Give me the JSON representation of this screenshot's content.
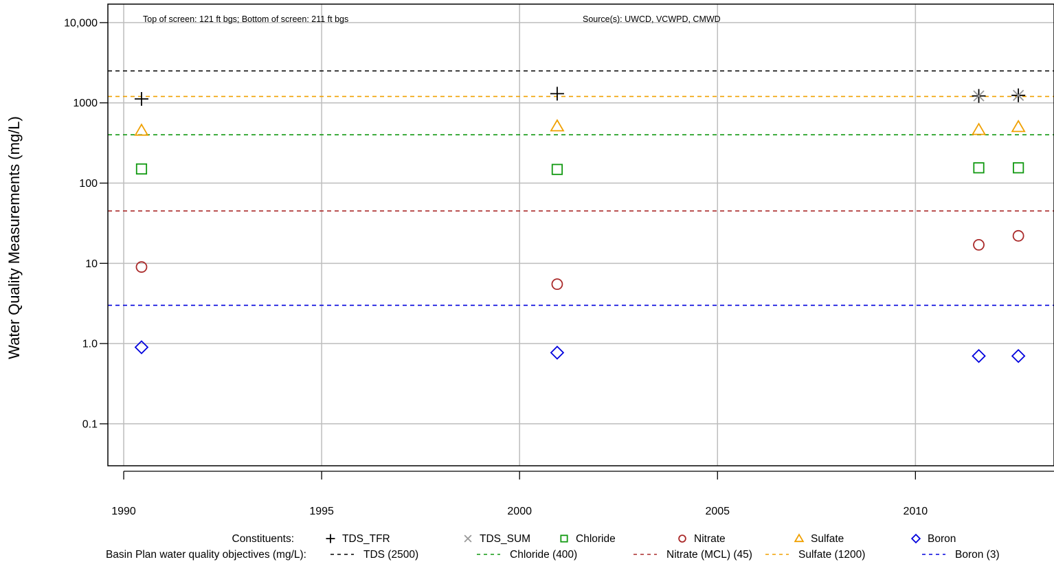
{
  "chart_data": {
    "type": "scatter",
    "ylabel": "Water Quality Measurements (mg/L)",
    "y_scale": "log",
    "ylim": [
      0.03,
      17000
    ],
    "xlim": [
      1989.6,
      2013.5
    ],
    "x_ticks": [
      1990,
      1995,
      2000,
      2005,
      2010
    ],
    "x_tick_labels": [
      "1990",
      "1995",
      "2000",
      "2005",
      "2010"
    ],
    "y_ticks": [
      0.1,
      1,
      10,
      100,
      1000,
      10000
    ],
    "y_tick_labels": [
      "0.1",
      "1.0",
      "10",
      "100",
      "1000",
      "10,000"
    ],
    "grid": true,
    "annotations": {
      "screen": "Top of screen: 121 ft bgs; Bottom of screen: 211 ft bgs",
      "source": "Source(s): UWCD, VCWPD, CMWD"
    },
    "series": [
      {
        "name": "TDS_TFR",
        "marker": "plus",
        "color": "#000000",
        "points": [
          [
            1990.45,
            1120
          ],
          [
            2000.95,
            1300
          ],
          [
            2011.6,
            1220
          ],
          [
            2012.6,
            1240
          ]
        ]
      },
      {
        "name": "TDS_SUM",
        "marker": "cross",
        "color": "#999999",
        "points": [
          [
            2011.6,
            1220
          ],
          [
            2012.6,
            1240
          ]
        ]
      },
      {
        "name": "Chloride",
        "marker": "square",
        "color": "#119911",
        "points": [
          [
            1990.45,
            150
          ],
          [
            2000.95,
            148
          ],
          [
            2011.6,
            155
          ],
          [
            2012.6,
            155
          ]
        ]
      },
      {
        "name": "Nitrate",
        "marker": "circle",
        "color": "#aa2a2a",
        "points": [
          [
            1990.45,
            9
          ],
          [
            2000.95,
            5.5
          ],
          [
            2011.6,
            17
          ],
          [
            2012.6,
            22
          ]
        ]
      },
      {
        "name": "Sulfate",
        "marker": "triangle",
        "color": "#f0a000",
        "points": [
          [
            1990.45,
            450
          ],
          [
            2000.95,
            510
          ],
          [
            2011.6,
            460
          ],
          [
            2012.6,
            500
          ]
        ]
      },
      {
        "name": "Boron",
        "marker": "diamond",
        "color": "#0000dd",
        "points": [
          [
            1990.45,
            0.9
          ],
          [
            2000.95,
            0.77
          ],
          [
            2011.6,
            0.7
          ],
          [
            2012.6,
            0.7
          ]
        ]
      }
    ],
    "objectives": [
      {
        "name": "TDS (2500)",
        "value": 2500,
        "color": "#000000"
      },
      {
        "name": "Chloride (400)",
        "value": 400,
        "color": "#119911"
      },
      {
        "name": "Nitrate (MCL) (45)",
        "value": 45,
        "color": "#aa2a2a"
      },
      {
        "name": "Sulfate (1200)",
        "value": 1200,
        "color": "#f0a000"
      },
      {
        "name": "Boron (3)",
        "value": 3,
        "color": "#0000dd"
      }
    ],
    "legend": {
      "placement": "bottom",
      "constituents_label": "Constituents:",
      "objectives_label": "Basin Plan water quality objectives (mg/L):"
    }
  }
}
